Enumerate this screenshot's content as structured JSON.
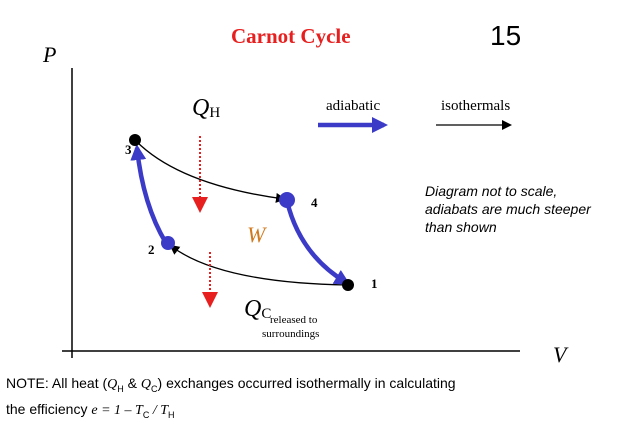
{
  "title": "Carnot Cycle",
  "slide_number": "15",
  "axes": {
    "y_label": "P",
    "x_label": "V"
  },
  "heat_in": {
    "symbol": "Q",
    "subscript": "H"
  },
  "heat_out": {
    "symbol": "Q",
    "subscript": "C",
    "note_line1": "released to",
    "note_line2": "surroundings"
  },
  "work_label": "W",
  "points": {
    "p1": "1",
    "p2": "2",
    "p3": "3",
    "p4": "4"
  },
  "legend": {
    "adiabatic": "adiabatic",
    "isothermals": "isothermals"
  },
  "scale_note": "Diagram not to scale, adiabats are much steeper than shown",
  "footnote": {
    "line1_prefix": "NOTE: All heat (",
    "qh_symbol": "Q",
    "qh_sub": "H",
    "amp": " & ",
    "qc_symbol": "Q",
    "qc_sub": "C",
    "line1_suffix": ") exchanges occurred isothermally in calculating",
    "line2_prefix": "the efficiency ",
    "formula_e": "e = 1 – T",
    "formula_c_sub": "C",
    "formula_div": " / T",
    "formula_h_sub": "H"
  },
  "colors": {
    "title": "#e81f1f",
    "adiabat": "#3b3bc8",
    "heat_arrow": "#e81f1f",
    "work": "#d07a1d"
  }
}
